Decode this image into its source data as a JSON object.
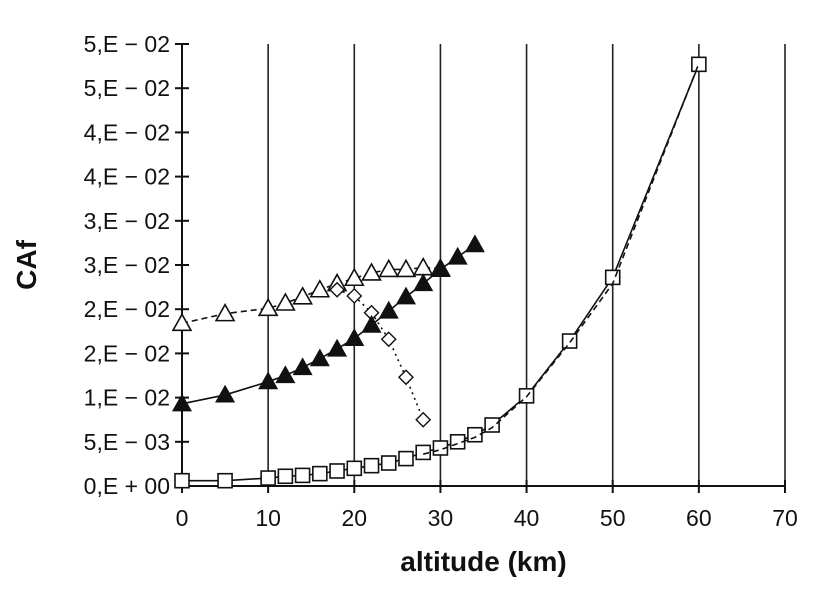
{
  "chart_data": {
    "type": "line",
    "xlabel": "altitude (km)",
    "ylabel": "CAf",
    "xlim": [
      0,
      70
    ],
    "ylim": [
      0,
      0.05
    ],
    "x_ticks": [
      0,
      10,
      20,
      30,
      40,
      50,
      60,
      70
    ],
    "x_tick_labels": [
      "0",
      "10",
      "20",
      "30",
      "40",
      "50",
      "60",
      "70"
    ],
    "y_ticks": [
      0,
      0.005,
      0.01,
      0.015,
      0.02,
      0.025,
      0.03,
      0.035,
      0.04,
      0.045,
      0.05
    ],
    "y_tick_labels": [
      "0,E + 00",
      "5,E − 03",
      "1,E − 02",
      "2,E − 02",
      "2,E − 02",
      "3,E − 02",
      "3,E − 02",
      "4,E − 02",
      "4,E − 02",
      "5,E − 02",
      "5,E − 02"
    ],
    "grid": "vertical",
    "legend": "none",
    "series": [
      {
        "marker": "open-triangle",
        "line": "dashed",
        "color": "#111111",
        "x": [
          0,
          5,
          10,
          12,
          14,
          16,
          18,
          20,
          22,
          24,
          26,
          28,
          30
        ],
        "y": [
          0.0184,
          0.0195,
          0.0201,
          0.0207,
          0.0214,
          0.0222,
          0.0229,
          0.0235,
          0.0241,
          0.0245,
          0.0245,
          0.0247,
          0.0246
        ]
      },
      {
        "marker": "open-diamond",
        "line": "dotted",
        "color": "#111111",
        "x": [
          18,
          20,
          22,
          24,
          26,
          28
        ],
        "y": [
          0.0222,
          0.0215,
          0.0196,
          0.0166,
          0.0123,
          0.0075
        ]
      },
      {
        "marker": "filled-triangle",
        "line": "solid",
        "color": "#111111",
        "x": [
          0,
          5,
          10,
          12,
          14,
          16,
          18,
          20,
          22,
          24,
          26,
          28,
          30,
          32,
          34
        ],
        "y": [
          0.0093,
          0.0103,
          0.0118,
          0.0125,
          0.0134,
          0.0144,
          0.0155,
          0.0167,
          0.0182,
          0.0198,
          0.0214,
          0.0229,
          0.0245,
          0.0259,
          0.0273
        ]
      },
      {
        "marker": "open-square",
        "line": "solid",
        "color": "#111111",
        "x": [
          0,
          5,
          10,
          12,
          14,
          16,
          18,
          20,
          22,
          24,
          26,
          28,
          30,
          32,
          34,
          36,
          40,
          45,
          50,
          60
        ],
        "y": [
          0.0006,
          0.0006,
          0.0009,
          0.0011,
          0.0012,
          0.0014,
          0.0017,
          0.002,
          0.0023,
          0.0026,
          0.0031,
          0.0038,
          0.0043,
          0.005,
          0.0058,
          0.0069,
          0.0102,
          0.0164,
          0.0236,
          0.0477
        ]
      },
      {
        "marker": "none",
        "line": "dashed",
        "color": "#111111",
        "x": [
          28,
          30,
          32,
          34,
          36,
          40,
          45,
          50,
          60
        ],
        "y": [
          0.0036,
          0.0041,
          0.0048,
          0.0055,
          0.0066,
          0.0101,
          0.0162,
          0.0229,
          0.0478
        ]
      }
    ]
  }
}
